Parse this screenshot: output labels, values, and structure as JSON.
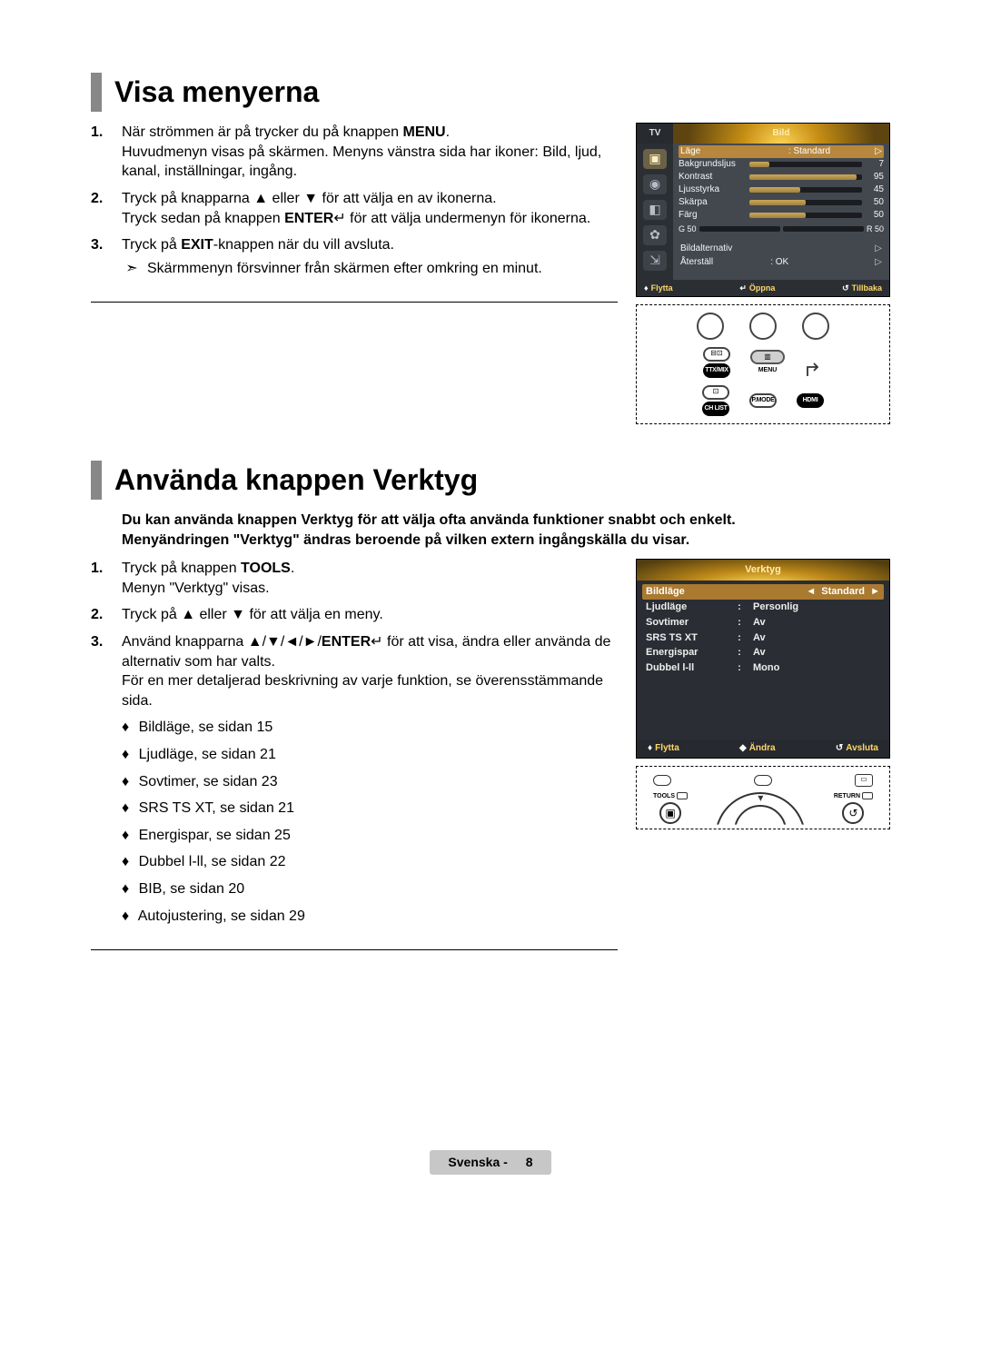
{
  "section1": {
    "heading": "Visa menyerna",
    "steps": [
      {
        "num": "1.",
        "lines": [
          "När strömmen är på trycker du på knappen <b>MENU</b>.",
          "Huvudmenyn visas på skärmen. Menyns vänstra sida har ikoner: Bild, ljud, kanal, inställningar, ingång."
        ]
      },
      {
        "num": "2.",
        "lines": [
          "Tryck på knapparna ▲ eller ▼ för att välja en av ikonerna.",
          "Tryck sedan på knappen <b>ENTER</b>↵ för att välja undermenyn för ikonerna."
        ]
      },
      {
        "num": "3.",
        "lines": [
          "Tryck på <b>EXIT</b>-knappen när du vill avsluta."
        ],
        "note": "Skärmmenyn försvinner från skärmen efter omkring en minut."
      }
    ]
  },
  "osd1": {
    "tv": "TV",
    "title": "Bild",
    "rows_sel": {
      "label": "Läge",
      "val": "Standard"
    },
    "rows": [
      {
        "label": "Bakgrundsljus",
        "fill": 18,
        "val": "7"
      },
      {
        "label": "Kontrast",
        "fill": 95,
        "val": "95"
      },
      {
        "label": "Ljusstyrka",
        "fill": 45,
        "val": "45"
      },
      {
        "label": "Skärpa",
        "fill": 50,
        "val": "50"
      },
      {
        "label": "Färg",
        "fill": 50,
        "val": "50"
      }
    ],
    "gr": {
      "g": "G 50",
      "r": "R 50"
    },
    "simple": [
      {
        "l": "Bildalternativ",
        "r": ""
      },
      {
        "l": "Återställ",
        "r": ": OK"
      }
    ],
    "footer": {
      "move": "Flytta",
      "open": "Öppna",
      "back": "Tillbaka"
    }
  },
  "remote1": {
    "row2": {
      "left": "TTX/MIX",
      "mid": "MENU"
    },
    "row3": {
      "l": "CH LIST",
      "m": "P.MODE",
      "r": "HDMI"
    }
  },
  "section2": {
    "heading": "Använda knappen Verktyg",
    "intro": [
      "Du kan använda knappen Verktyg för att välja ofta använda funktioner snabbt och enkelt.",
      "Menyändringen \"Verktyg\" ändras beroende på vilken extern ingångskälla du visar."
    ],
    "steps": [
      {
        "num": "1.",
        "lines": [
          "Tryck på knappen <b>TOOLS</b>.",
          "Menyn \"Verktyg\" visas."
        ]
      },
      {
        "num": "2.",
        "lines": [
          "Tryck på ▲ eller ▼ för att välja en meny."
        ]
      },
      {
        "num": "3.",
        "lines": [
          "Använd knapparna ▲/▼/◄/►/<b>ENTER</b>↵ för att visa, ändra eller använda de alternativ som har valts.",
          "För en mer detaljerad beskrivning av varje funktion, se överensstämmande sida."
        ],
        "diamonds": [
          "Bildläge, se sidan 15",
          "Ljudläge, se sidan 21",
          "Sovtimer, se sidan 23",
          "SRS TS XT, se sidan 21",
          "Energispar, se sidan 25",
          "Dubbel l-ll, se sidan 22",
          "BIB, se sidan 20",
          "Autojustering, se sidan 29"
        ]
      }
    ]
  },
  "tools_osd": {
    "title": "Verktyg",
    "rows": [
      {
        "label": "Bildläge",
        "val": "Standard",
        "sel": true
      },
      {
        "label": "Ljudläge",
        "val": "Personlig"
      },
      {
        "label": "Sovtimer",
        "val": "Av"
      },
      {
        "label": "SRS TS XT",
        "val": "Av"
      },
      {
        "label": "Energispar",
        "val": "Av"
      },
      {
        "label": "Dubbel l-ll",
        "val": "Mono"
      }
    ],
    "footer": {
      "move": "Flytta",
      "change": "Ändra",
      "exit": "Avsluta"
    }
  },
  "remote2": {
    "left": "TOOLS",
    "right": "RETURN"
  },
  "pagefoot": {
    "lang": "Svenska - ",
    "num": "8"
  }
}
